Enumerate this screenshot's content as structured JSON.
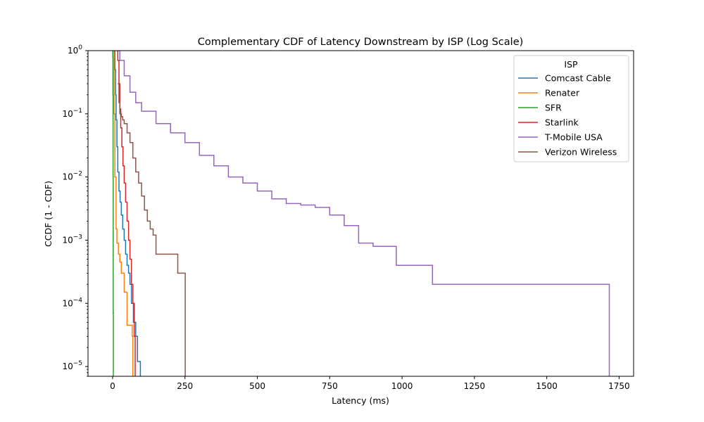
{
  "chart_data": {
    "type": "line",
    "title": "Complementary CDF of Latency Downstream by ISP (Log Scale)",
    "xlabel": "Latency (ms)",
    "ylabel": "CCDF (1 - CDF)",
    "y_scale": "log",
    "xlim": [
      -85,
      1800
    ],
    "ylim": [
      7e-06,
      1
    ],
    "x_ticks": [
      0,
      250,
      500,
      750,
      1000,
      1250,
      1500,
      1750
    ],
    "y_ticks": [
      {
        "value": 1e-05,
        "base": "10",
        "exp": "−5"
      },
      {
        "value": 0.0001,
        "base": "10",
        "exp": "−4"
      },
      {
        "value": 0.001,
        "base": "10",
        "exp": "−3"
      },
      {
        "value": 0.01,
        "base": "10",
        "exp": "−2"
      },
      {
        "value": 0.1,
        "base": "10",
        "exp": "−1"
      },
      {
        "value": 1,
        "base": "10",
        "exp": "0"
      }
    ],
    "legend_title": "ISP",
    "legend_position": "top-right",
    "grid": false,
    "series": [
      {
        "name": "Comcast Cable",
        "color": "#1f77b4",
        "x": [
          5,
          8,
          10,
          12,
          15,
          18,
          22,
          26,
          30,
          35,
          40,
          45,
          50,
          55,
          60,
          65,
          72,
          80,
          86,
          92,
          96
        ],
        "y": [
          1,
          0.5,
          0.2,
          0.08,
          0.03,
          0.012,
          0.006,
          0.004,
          0.0025,
          0.0015,
          0.001,
          0.0006,
          0.0004,
          0.0003,
          0.0002,
          0.0001,
          5e-05,
          3e-05,
          1.2e-05,
          1.2e-05,
          7e-06
        ]
      },
      {
        "name": "Renater",
        "color": "#ff7f0e",
        "x": [
          3,
          5,
          8,
          12,
          15,
          20,
          25,
          30,
          35,
          40,
          45,
          50,
          55,
          60,
          65,
          68,
          70
        ],
        "y": [
          1,
          0.1,
          0.01,
          0.0015,
          0.0009,
          0.0006,
          0.00045,
          0.0003,
          0.0003,
          0.00015,
          0.00015,
          4.5e-05,
          4.5e-05,
          4.5e-05,
          4.5e-05,
          3e-05,
          7e-06
        ]
      },
      {
        "name": "SFR",
        "color": "#2ca02c",
        "x": [
          0,
          0.5,
          1,
          1.5,
          2,
          2.5
        ],
        "y": [
          1,
          0.8,
          0.2,
          0.01,
          7e-05,
          7e-06
        ]
      },
      {
        "name": "Starlink",
        "color": "#d62728",
        "x": [
          15,
          18,
          22,
          25,
          28,
          32,
          36,
          40,
          45,
          50,
          55,
          60,
          65,
          70,
          75,
          78
        ],
        "y": [
          1,
          0.7,
          0.3,
          0.12,
          0.06,
          0.03,
          0.015,
          0.008,
          0.004,
          0.002,
          0.001,
          0.0005,
          0.0002,
          0.0001,
          3e-05,
          7e-06
        ]
      },
      {
        "name": "T-Mobile USA",
        "color": "#9467bd",
        "x": [
          15,
          25,
          40,
          60,
          80,
          100,
          150,
          200,
          250,
          300,
          350,
          400,
          450,
          500,
          550,
          600,
          650,
          700,
          750,
          800,
          850,
          900,
          950,
          980,
          1000,
          1100,
          1105,
          1300,
          1500,
          1715,
          1716
        ],
        "y": [
          1,
          0.7,
          0.4,
          0.22,
          0.15,
          0.11,
          0.07,
          0.05,
          0.035,
          0.022,
          0.015,
          0.01,
          0.008,
          0.006,
          0.0045,
          0.0038,
          0.0036,
          0.0033,
          0.0025,
          0.0017,
          0.0009,
          0.0008,
          0.0008,
          0.0004,
          0.0004,
          0.0004,
          0.0002,
          0.0002,
          0.0002,
          0.0002,
          7e-06
        ]
      },
      {
        "name": "Verizon Wireless",
        "color": "#8c564b",
        "x": [
          18,
          22,
          25,
          30,
          35,
          40,
          50,
          60,
          70,
          80,
          90,
          100,
          110,
          120,
          130,
          140,
          150,
          175,
          200,
          225,
          240,
          250,
          251
        ],
        "y": [
          0.3,
          0.15,
          0.1,
          0.09,
          0.08,
          0.07,
          0.05,
          0.035,
          0.02,
          0.012,
          0.008,
          0.005,
          0.003,
          0.002,
          0.0015,
          0.0012,
          0.0006,
          0.0006,
          0.0006,
          0.0003,
          0.0003,
          0.0003,
          7e-06
        ]
      }
    ]
  }
}
